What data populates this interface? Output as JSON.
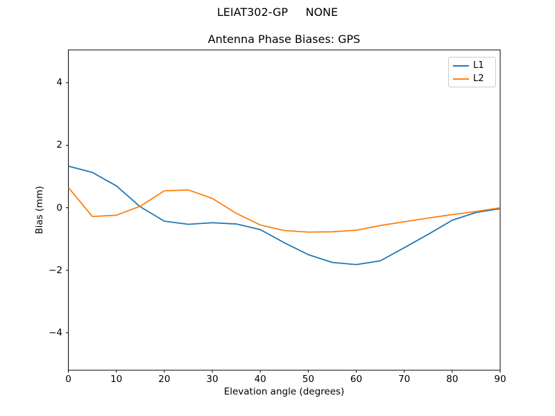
{
  "suptitle": "LEIAT302-GP     NONE",
  "chart_data": {
    "type": "line",
    "title": "Antenna Phase Biases: GPS",
    "xlabel": "Elevation angle (degrees)",
    "ylabel": "Bias (mm)",
    "xlim": [
      0,
      90
    ],
    "ylim": [
      -5.2,
      5.05
    ],
    "x_ticks": [
      0,
      10,
      20,
      30,
      40,
      50,
      60,
      70,
      80,
      90
    ],
    "y_ticks": [
      -4,
      -2,
      0,
      2,
      4
    ],
    "grid": false,
    "legend_position": "upper right",
    "x": [
      0,
      5,
      10,
      15,
      20,
      25,
      30,
      35,
      40,
      45,
      50,
      55,
      60,
      65,
      70,
      75,
      80,
      85,
      90
    ],
    "series": [
      {
        "name": "L1",
        "color": "#1f77b4",
        "values": [
          1.33,
          1.13,
          0.7,
          0.03,
          -0.43,
          -0.53,
          -0.48,
          -0.52,
          -0.7,
          -1.12,
          -1.5,
          -1.75,
          -1.82,
          -1.7,
          -1.28,
          -0.85,
          -0.4,
          -0.15,
          -0.03
        ]
      },
      {
        "name": "L2",
        "color": "#ff7f0e",
        "values": [
          0.65,
          -0.28,
          -0.24,
          0.05,
          0.54,
          0.57,
          0.3,
          -0.18,
          -0.55,
          -0.73,
          -0.78,
          -0.77,
          -0.72,
          -0.57,
          -0.45,
          -0.33,
          -0.22,
          -0.12,
          0.0
        ]
      }
    ]
  }
}
